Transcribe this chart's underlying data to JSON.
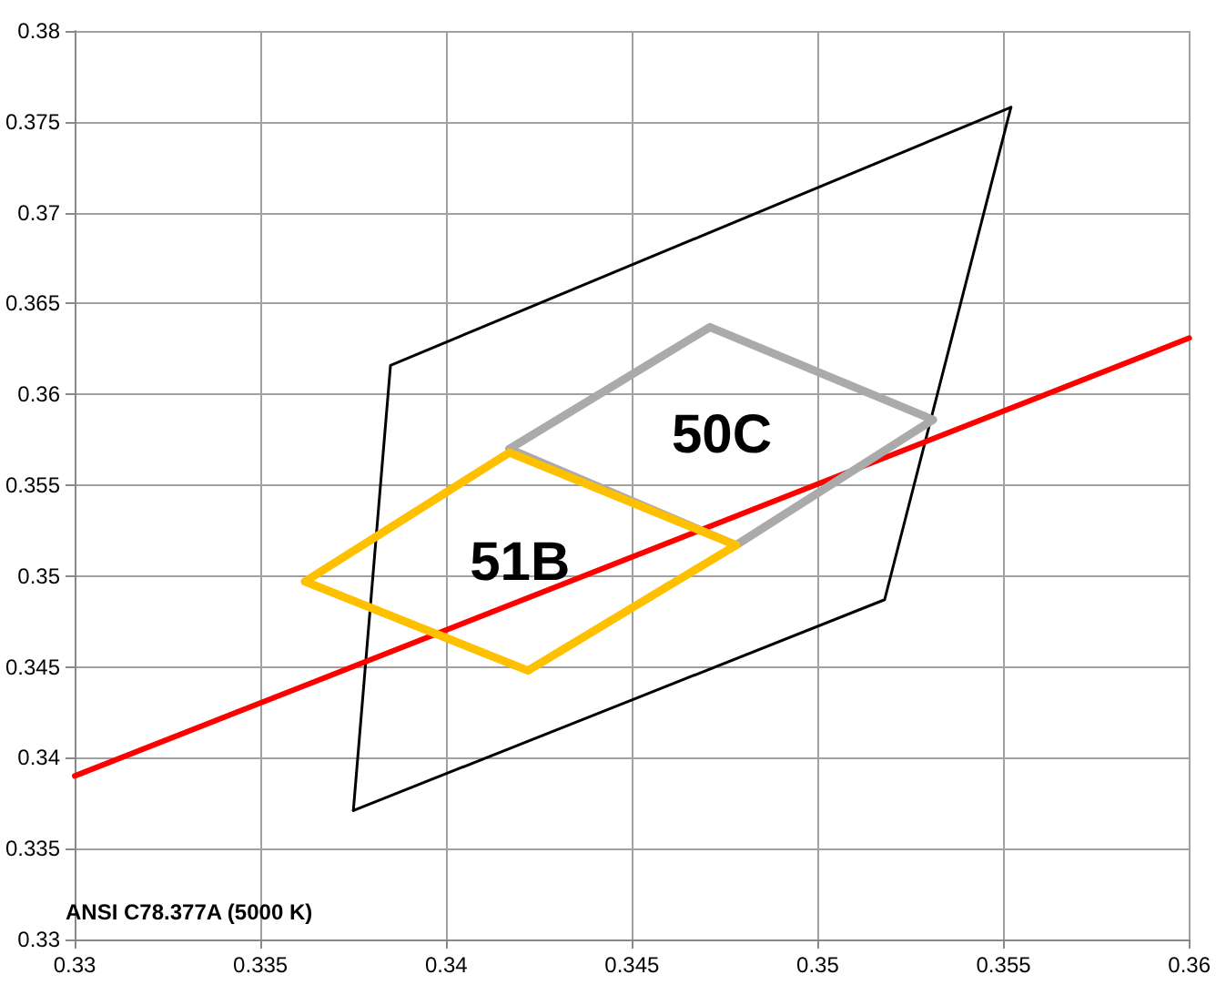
{
  "chart_data": {
    "type": "line",
    "xlim": [
      0.33,
      0.36
    ],
    "ylim": [
      0.33,
      0.38
    ],
    "xticks": [
      0.33,
      0.335,
      0.34,
      0.345,
      0.35,
      0.355,
      0.36
    ],
    "yticks": [
      0.33,
      0.335,
      0.34,
      0.345,
      0.35,
      0.355,
      0.36,
      0.365,
      0.37,
      0.375,
      0.38
    ],
    "grid": true,
    "marker": "none",
    "line_style": "solid",
    "legend": false,
    "series": [
      {
        "color": "#000000",
        "x": [
          0.3375,
          0.3385,
          0.3552
        ],
        "values": [
          0.3371,
          0.3616,
          0.3758
        ]
      },
      {
        "color": "#000000",
        "x": [
          0.3375,
          0.3518,
          0.3552
        ],
        "values": [
          0.3371,
          0.3487,
          0.3758
        ]
      },
      {
        "color": "#ff0000",
        "x": [
          0.33,
          0.36
        ],
        "values": [
          0.339,
          0.3631
        ]
      },
      {
        "name": "50C",
        "color": "#aaaaaa",
        "x": [
          0.3417,
          0.3471,
          0.3531
        ],
        "values": [
          0.357,
          0.3637,
          0.3586
        ]
      },
      {
        "color": "#aaaaaa",
        "x": [
          0.3417,
          0.3478,
          0.3531
        ],
        "values": [
          0.357,
          0.3517,
          0.3586
        ]
      },
      {
        "name": "51B",
        "color": "#ffc000",
        "x": [
          0.3362,
          0.3417,
          0.3478
        ],
        "values": [
          0.3497,
          0.3568,
          0.3517
        ]
      },
      {
        "color": "#ffc000",
        "x": [
          0.3362,
          0.3422,
          0.3478
        ],
        "values": [
          0.3497,
          0.3448,
          0.3517
        ]
      }
    ],
    "annotations": [
      "ANSI C78.377A (5000 K)"
    ]
  }
}
